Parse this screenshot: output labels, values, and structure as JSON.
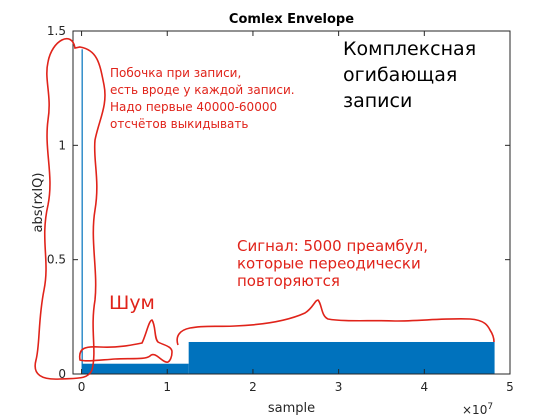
{
  "chart_data": {
    "type": "area",
    "title": "Comlex Envelope",
    "xlabel": "sample",
    "ylabel": "abs(rxIQ)",
    "x_multiplier_label": "×10",
    "x_multiplier_exponent": "7",
    "xlim": [
      -0.1,
      5.0
    ],
    "ylim": [
      0,
      1.5
    ],
    "x_ticks": [
      0,
      1,
      2,
      3,
      4,
      5
    ],
    "y_ticks": [
      0,
      0.5,
      1,
      1.5
    ],
    "x_tick_labels": [
      "0",
      "1",
      "2",
      "3",
      "4",
      "5"
    ],
    "y_tick_labels": [
      "0",
      "0.5",
      "1",
      "1.5"
    ],
    "grid": false,
    "series": [
      {
        "color": "#0072bd",
        "segments": [
          {
            "x_start": 0.0,
            "x_end": 0.003,
            "y": 1.42
          },
          {
            "x_start": 0.003,
            "x_end": 1.25,
            "y": 0.045
          },
          {
            "x_start": 1.25,
            "x_end": 4.82,
            "y": 0.14
          }
        ]
      }
    ],
    "annotations": {
      "top_right": [
        "Комплексная",
        "огибающая",
        "записи"
      ],
      "side_effect": [
        "Побочка при записи,",
        "есть вроде у каждой записи.",
        "Надо первые 40000-60000",
        "отсчётов выкидывать"
      ],
      "noise": "Шум",
      "signal": [
        "Сигнал: 5000 преамбул,",
        "которые переодически",
        "повторяются"
      ],
      "red_color": "#e0231a"
    }
  }
}
